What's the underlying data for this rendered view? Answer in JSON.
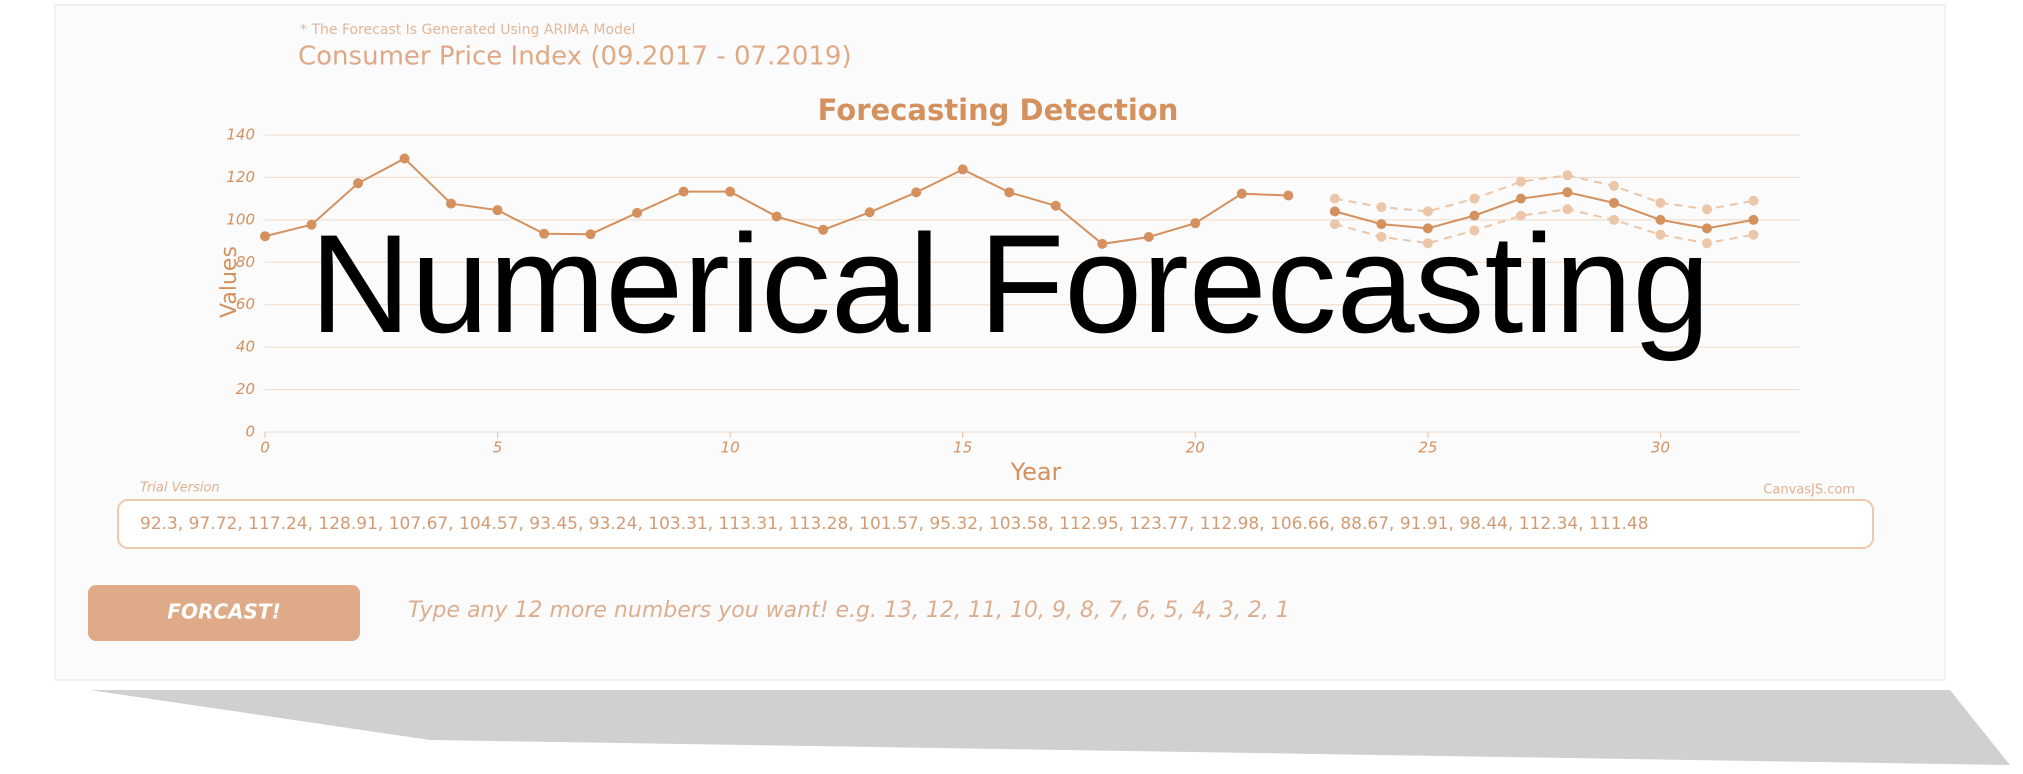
{
  "header": {
    "note": "* The Forecast Is Generated Using ARIMA Model",
    "title": "Consumer Price Index (09.2017 - 07.2019)"
  },
  "chart_data": {
    "type": "line",
    "title": "Forecasting Detection",
    "x_label": "Year",
    "y_label": "Values",
    "xlim": [
      0,
      33
    ],
    "ylim": [
      0,
      140
    ],
    "xticks": [
      0,
      5,
      10,
      15,
      20,
      25,
      30
    ],
    "yticks": [
      0,
      20,
      40,
      60,
      80,
      100,
      120,
      140
    ],
    "grid": true,
    "series": [
      {
        "color": "#d4915e",
        "dashed": false,
        "x": [
          0,
          1,
          2,
          3,
          4,
          5,
          6,
          7,
          8,
          9,
          10,
          11,
          12,
          13,
          14,
          15,
          16,
          17,
          18,
          19,
          20,
          21,
          22
        ],
        "values": [
          92.3,
          97.72,
          117.24,
          128.91,
          107.67,
          104.57,
          93.45,
          93.24,
          103.31,
          113.31,
          113.28,
          101.57,
          95.32,
          103.58,
          112.95,
          123.77,
          112.98,
          106.66,
          88.67,
          91.91,
          98.44,
          112.34,
          111.48
        ]
      },
      {
        "color": "#d4915e",
        "dashed": false,
        "x": [
          23,
          24,
          25,
          26,
          27,
          28,
          29,
          30,
          31,
          32
        ],
        "values": [
          104,
          98,
          96,
          102,
          110,
          113,
          108,
          100,
          96,
          100
        ]
      },
      {
        "color": "#ebc6a8",
        "dashed": true,
        "x": [
          23,
          24,
          25,
          26,
          27,
          28,
          29,
          30,
          31,
          32
        ],
        "values": [
          110,
          106,
          104,
          110,
          118,
          121,
          116,
          108,
          105,
          109
        ]
      },
      {
        "color": "#ebc6a8",
        "dashed": true,
        "x": [
          23,
          24,
          25,
          26,
          27,
          28,
          29,
          30,
          31,
          32
        ],
        "values": [
          98,
          92,
          89,
          95,
          102,
          105,
          100,
          93,
          89,
          93
        ]
      }
    ]
  },
  "footer": {
    "trial": "Trial Version",
    "credit": "CanvasJS.com"
  },
  "input": {
    "value": "92.3, 97.72, 117.24, 128.91, 107.67, 104.57, 93.45, 93.24, 103.31, 113.31, 113.28, 101.57, 95.32, 103.58, 112.95, 123.77, 112.98, 106.66, 88.67, 91.91, 98.44, 112.34, 111.48"
  },
  "button": {
    "label": "FORCAST!"
  },
  "hint": "Type any 12 more numbers you want! e.g. 13, 12, 11, 10, 9, 8, 7, 6, 5, 4, 3, 2, 1",
  "overlay": "Numerical Forecasting"
}
